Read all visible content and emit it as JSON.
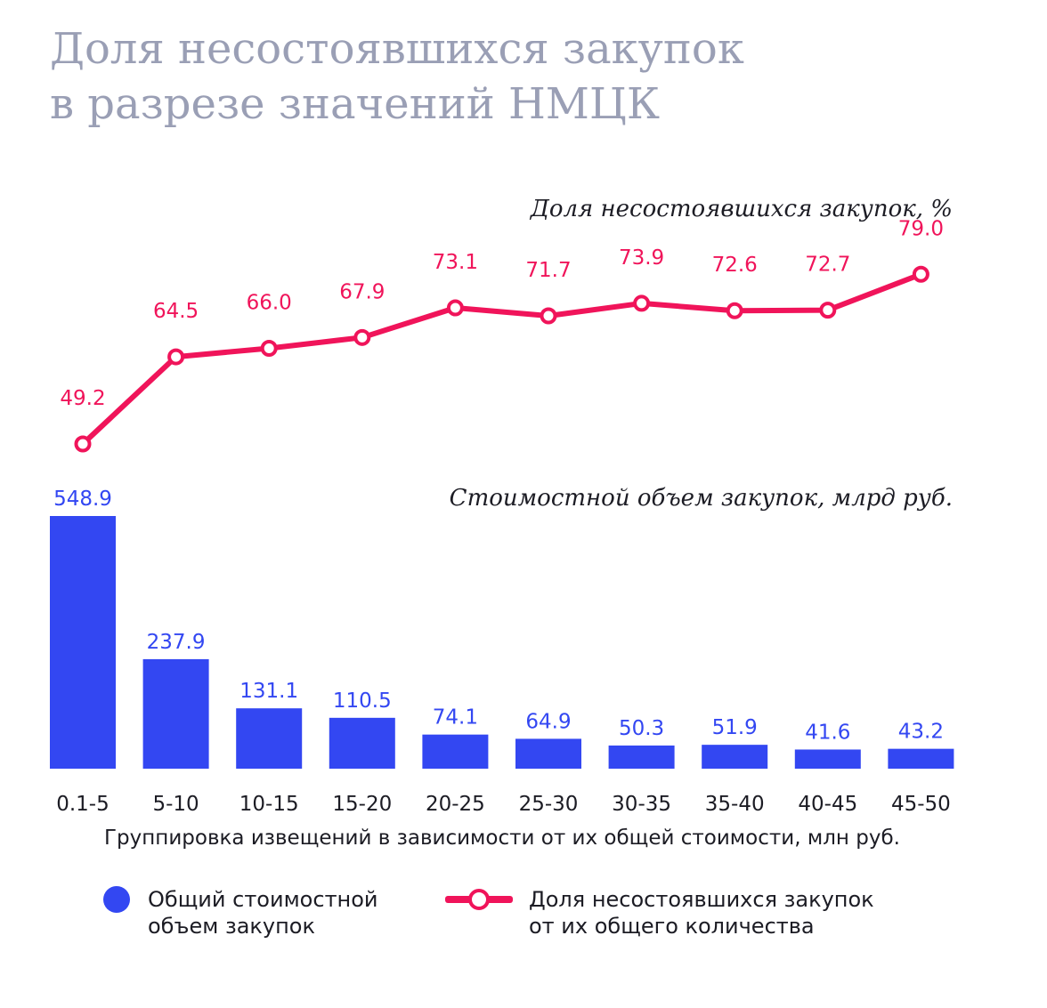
{
  "title": {
    "line1": "Доля несостоявшихся закупок",
    "line2": "в разрезе значений НМЦК"
  },
  "colors": {
    "title": "#9a9fb5",
    "bar": "#3347f2",
    "line": "#f0145a",
    "text": "#1c1c24"
  },
  "chart_data": {
    "type": "bar",
    "categories": [
      "0.1-5",
      "5-10",
      "10-15",
      "15-20",
      "20-25",
      "25-30",
      "30-35",
      "35-40",
      "40-45",
      "45-50"
    ],
    "xlabel": "Группировка извещений в зависимости от их общей стоимости, млн руб.",
    "series": [
      {
        "name": "Общий стоимостной объем закупок",
        "type": "bar",
        "label": "Стоимостной объем закупок, млрд руб.",
        "values": [
          548.9,
          237.9,
          131.1,
          110.5,
          74.1,
          64.9,
          50.3,
          51.9,
          41.6,
          43.2
        ],
        "value_labels": [
          "548.9",
          "237.9",
          "131.1",
          "110.5",
          "74.1",
          "64.9",
          "50.3",
          "51.9",
          "41.6",
          "43.2"
        ]
      },
      {
        "name": "Доля несостоявшихся закупок от их общего количества",
        "type": "line",
        "label": "Доля несостоявшихся закупок, %",
        "values": [
          49.2,
          64.5,
          66.0,
          67.9,
          73.1,
          71.7,
          73.9,
          72.6,
          72.7,
          79.0
        ],
        "value_labels": [
          "49.2",
          "64.5",
          "66.0",
          "67.9",
          "73.1",
          "71.7",
          "73.9",
          "72.6",
          "72.7",
          "79.0"
        ]
      }
    ],
    "grid": false,
    "legend_position": "bottom"
  },
  "legend": {
    "bar_line1": "Общий стоимостной",
    "bar_line2": "объем закупок",
    "line_line1": "Доля несостоявшихся закупок",
    "line_line2": "от их общего количества"
  }
}
